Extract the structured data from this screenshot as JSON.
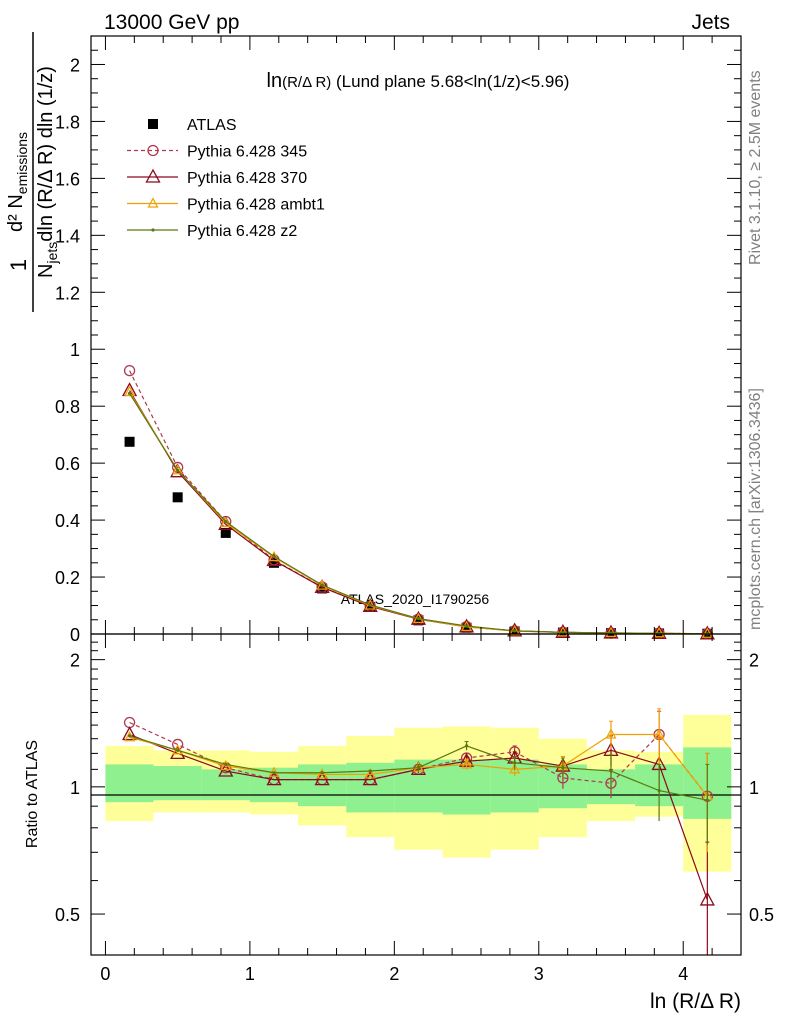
{
  "header": {
    "left": "13000 GeV pp",
    "right": "Jets"
  },
  "side_labels": {
    "rivet": "Rivet 3.1.10, ≥ 2.5M events",
    "mcplots": "mcplots.cern.ch [arXiv:1306.3436]"
  },
  "watermark": "ATLAS_2020_I1790256",
  "colors": {
    "atlas": "#000000",
    "p345": "#b0394f",
    "p370": "#8b0a1e",
    "ambt1": "#f0a000",
    "z2": "#5a7a10",
    "band_inner": "#8ef08e",
    "band_outer": "#ffff99"
  },
  "chart_data": [
    {
      "type": "scatter",
      "panel": "main",
      "title_main": "ln",
      "title_frac": "(R/Δ R)",
      "title_rest": " (Lund plane 5.68<ln(1/z)<5.96)",
      "ylabel": "1/N_jets dN_emissions / dln(R/ΔR) dln(1/z)",
      "ylabel_parts": {
        "one": "1",
        "numerator": "d² N",
        "numerator_sub": "emissions",
        "denom_n": "N",
        "denom_sub": "jets",
        "denom_rest": "dln (R/Δ R) dln (1/z)"
      },
      "ylim": [
        0,
        2.1
      ],
      "yticks": [
        0.2,
        0.4,
        0.6,
        0.8,
        1,
        1.2,
        1.4,
        1.6,
        1.8,
        2
      ],
      "ytick_labels": [
        "0.2",
        "0.4",
        "0.6",
        "0.8",
        "1",
        "1.2",
        "1.4",
        "1.6",
        "1.8",
        "2"
      ],
      "y0_label": "0",
      "x": [
        0.167,
        0.5,
        0.833,
        1.167,
        1.5,
        1.833,
        2.167,
        2.5,
        2.833,
        3.167,
        3.5,
        3.833,
        4.167
      ],
      "legend_position": "top-left",
      "series": [
        {
          "name": "ATLAS",
          "key": "atlas",
          "marker": "square",
          "values": [
            0.675,
            0.48,
            0.355,
            0.25,
            0.16,
            0.095,
            0.048,
            0.022,
            0.009,
            0.005,
            0.003,
            0.002,
            0.001
          ]
        },
        {
          "name": "Pythia 6.428 345",
          "key": "p345",
          "marker": "circle",
          "dashed": true,
          "values": [
            0.925,
            0.585,
            0.395,
            0.26,
            0.165,
            0.098,
            0.052,
            0.026,
            0.011,
            0.006,
            0.003,
            0.0025,
            0.001
          ]
        },
        {
          "name": "Pythia 6.428 370",
          "key": "p370",
          "marker": "triangle",
          "values": [
            0.855,
            0.57,
            0.385,
            0.258,
            0.164,
            0.097,
            0.052,
            0.025,
            0.011,
            0.006,
            0.0037,
            0.0023,
            0.0005
          ]
        },
        {
          "name": "Pythia 6.428 ambt1",
          "key": "ambt1",
          "marker": "triangle-small",
          "values": [
            0.85,
            0.575,
            0.39,
            0.27,
            0.17,
            0.1,
            0.053,
            0.025,
            0.01,
            0.0057,
            0.004,
            0.0027,
            0.001
          ]
        },
        {
          "name": "Pythia 6.428 z2",
          "key": "z2",
          "marker": "dot",
          "values": [
            0.845,
            0.575,
            0.395,
            0.272,
            0.172,
            0.102,
            0.054,
            0.028,
            0.011,
            0.0057,
            0.0037,
            0.002,
            0.001
          ]
        }
      ]
    },
    {
      "type": "scatter",
      "panel": "ratio",
      "ylabel": "Ratio to ATLAS",
      "xlabel": "ln (R/Δ R)",
      "ylim": [
        0.4,
        2.3
      ],
      "yscale": "log",
      "yticks": [
        0.5,
        1,
        2
      ],
      "ytick_labels": [
        "0.5",
        "1",
        "2"
      ],
      "xlim": [
        -0.1,
        4.4
      ],
      "xticks": [
        0,
        1,
        2,
        3,
        4
      ],
      "xtick_labels": [
        "0",
        "1",
        "2",
        "3",
        "4"
      ],
      "bins": [
        0,
        0.333,
        0.667,
        1,
        1.333,
        1.667,
        2,
        2.333,
        2.667,
        3,
        3.333,
        3.667,
        4,
        4.333
      ],
      "band_inner": [
        [
          0.92,
          1.13
        ],
        [
          0.93,
          1.12
        ],
        [
          0.93,
          1.1
        ],
        [
          0.92,
          1.11
        ],
        [
          0.9,
          1.13
        ],
        [
          0.87,
          1.14
        ],
        [
          0.87,
          1.16
        ],
        [
          0.86,
          1.16
        ],
        [
          0.87,
          1.16
        ],
        [
          0.89,
          1.13
        ],
        [
          0.91,
          1.1
        ],
        [
          0.9,
          1.13
        ],
        [
          0.84,
          1.24
        ]
      ],
      "band_outer": [
        [
          0.83,
          1.25
        ],
        [
          0.87,
          1.22
        ],
        [
          0.87,
          1.22
        ],
        [
          0.86,
          1.21
        ],
        [
          0.81,
          1.25
        ],
        [
          0.76,
          1.32
        ],
        [
          0.71,
          1.38
        ],
        [
          0.68,
          1.39
        ],
        [
          0.71,
          1.38
        ],
        [
          0.76,
          1.3
        ],
        [
          0.83,
          1.22
        ],
        [
          0.85,
          1.21
        ],
        [
          0.63,
          1.48
        ]
      ],
      "series": [
        {
          "name": "Pythia 6.428 345",
          "key": "p345",
          "marker": "circle",
          "dashed": true,
          "values": [
            1.42,
            1.26,
            1.11,
            1.04,
            1.04,
            1.04,
            1.1,
            1.17,
            1.21,
            1.05,
            1.02,
            1.33,
            0.95
          ],
          "err": [
            0,
            0,
            0,
            0,
            0,
            0,
            0.02,
            0.03,
            0.04,
            0.06,
            0.08,
            0.18,
            0.25
          ]
        },
        {
          "name": "Pythia 6.428 370",
          "key": "p370",
          "marker": "triangle",
          "values": [
            1.33,
            1.2,
            1.09,
            1.04,
            1.04,
            1.04,
            1.1,
            1.15,
            1.17,
            1.12,
            1.22,
            1.13,
            0.54
          ],
          "err": [
            0,
            0,
            0,
            0,
            0,
            0,
            0.02,
            0.03,
            0.04,
            0.06,
            0.1,
            0.18,
            0.2
          ]
        },
        {
          "name": "Pythia 6.428 ambt1",
          "key": "ambt1",
          "marker": "triangle-small",
          "values": [
            1.31,
            1.22,
            1.12,
            1.08,
            1.07,
            1.07,
            1.11,
            1.13,
            1.1,
            1.12,
            1.33,
            1.33,
            0.95
          ],
          "err": [
            0,
            0,
            0,
            0,
            0,
            0,
            0.02,
            0.03,
            0.04,
            0.06,
            0.1,
            0.2,
            0.25
          ]
        },
        {
          "name": "Pythia 6.428 z2",
          "key": "z2",
          "marker": "dot",
          "values": [
            1.32,
            1.22,
            1.13,
            1.08,
            1.08,
            1.09,
            1.11,
            1.25,
            1.14,
            1.11,
            1.09,
            0.98,
            0.93
          ],
          "err": [
            0,
            0,
            0,
            0,
            0,
            0,
            0.02,
            0.03,
            0.04,
            0.06,
            0.1,
            0.15,
            0.2
          ]
        }
      ]
    }
  ]
}
